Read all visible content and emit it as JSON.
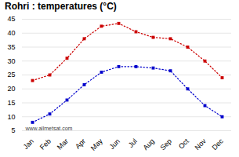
{
  "chart_data": {
    "type": "line",
    "title": "Rohri : temperatures (°C)",
    "categories": [
      "Jan",
      "Feb",
      "Mar",
      "Apr",
      "May",
      "Jun",
      "Jul",
      "Aug",
      "Sep",
      "Oct",
      "Nov",
      "Dec"
    ],
    "series": [
      {
        "color": "#cc0000",
        "marker": "square",
        "line_style": "dotted",
        "values": [
          23,
          25,
          31,
          38,
          42.5,
          43.5,
          40.5,
          38.5,
          38,
          35,
          30,
          24
        ]
      },
      {
        "color": "#0000cc",
        "marker": "square",
        "line_style": "dotted",
        "values": [
          8,
          11,
          16,
          21.5,
          26,
          28,
          28,
          27.5,
          26.5,
          20,
          14,
          10
        ]
      }
    ],
    "ylim": [
      5,
      45
    ],
    "yticks": [
      5,
      10,
      15,
      20,
      25,
      30,
      35,
      40,
      45
    ],
    "grid": true,
    "annotations": [
      "www.allmetsat.com"
    ]
  }
}
